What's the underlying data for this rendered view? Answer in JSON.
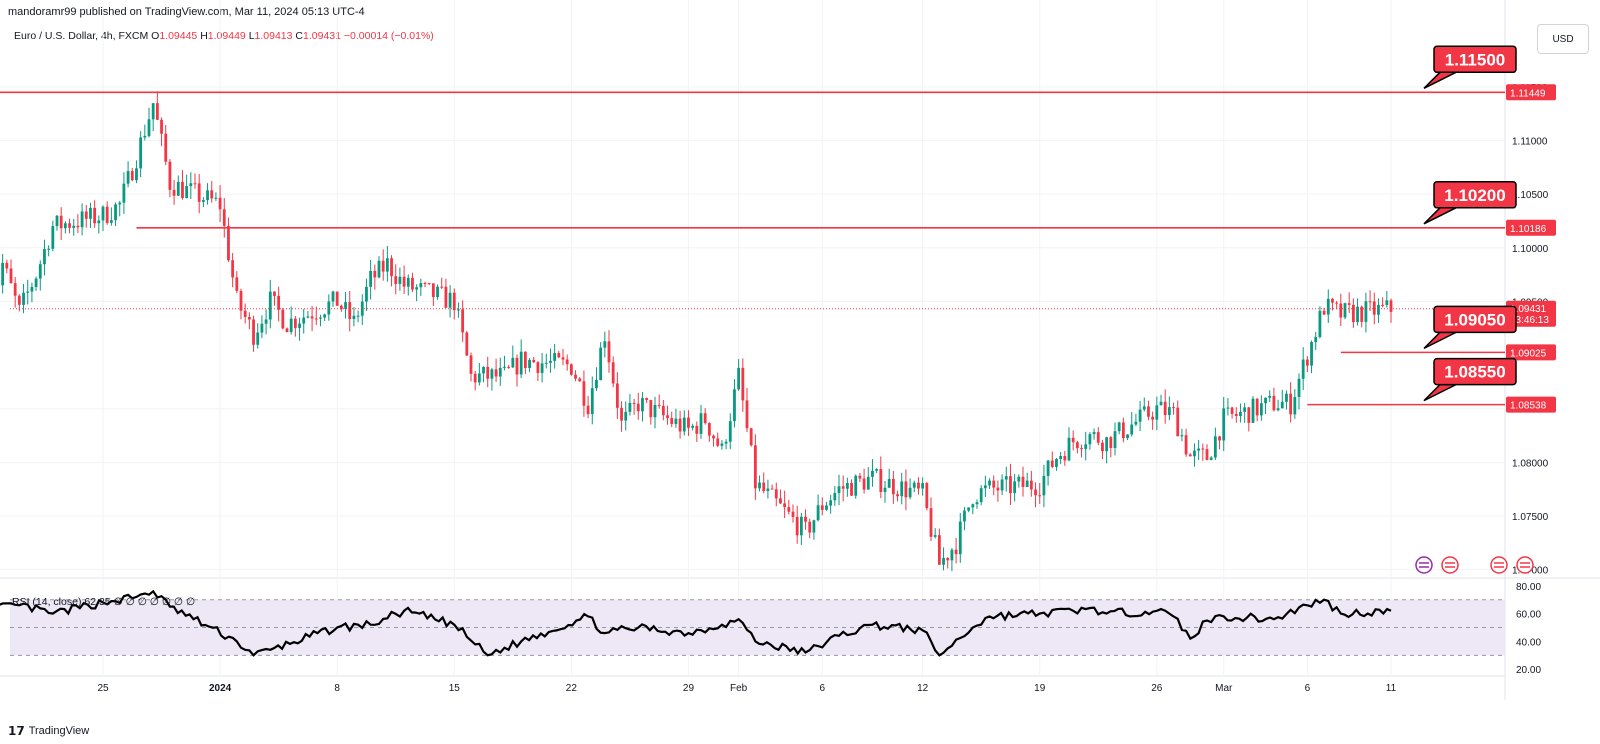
{
  "header": {
    "published_by": "mandoramr99 published on TradingView.com, Mar 11, 2024 05:13 UTC-4"
  },
  "legend": {
    "symbol": "Euro / U.S. Dollar, 4h, FXCM",
    "o_label": "O",
    "o_value": "1.09445",
    "h_label": "H",
    "h_value": "1.09449",
    "l_label": "L",
    "l_value": "1.09413",
    "c_label": "C",
    "c_value": "1.09431",
    "change": "−0.00014 (−0.01%)"
  },
  "currency_button": "USD",
  "rsi_legend": {
    "label": "RSI (14, close)",
    "value": "62.35",
    "extra": "∅ ∅ ∅ ∅ ∅ ∅ ∅"
  },
  "footer": {
    "logo_text": "TradingView"
  },
  "colors": {
    "up": "#089981",
    "down": "#f23645",
    "level_line": "#f23645",
    "callout_bg": "#f23645",
    "rsi_band": "#ede7f6",
    "rsi_line": "#000000"
  },
  "chart_data": [
    {
      "type": "candlestick",
      "xlabel": "",
      "ylabel": "",
      "price_axis_labels": [
        "1.11500",
        "1.11000",
        "1.10500",
        "1.10000",
        "1.09500",
        "1.08500",
        "1.08000",
        "1.07500",
        "1.07000"
      ],
      "price_axis_values": [
        1.115,
        1.11,
        1.105,
        1.1,
        1.095,
        1.085,
        1.08,
        1.075,
        1.07
      ],
      "time_axis_labels": [
        "25",
        "2024",
        "8",
        "15",
        "22",
        "29",
        "Feb",
        "6",
        "12",
        "19",
        "26",
        "Mar",
        "6",
        "11"
      ],
      "ylim": [
        1.0695,
        1.1175
      ],
      "current_price": {
        "value": 1.09431,
        "label": "1.09431",
        "countdown": "03:46:13"
      },
      "levels": [
        {
          "callout": "1.11500",
          "axis_label": "1.11449",
          "value": 1.11449,
          "x_start": "2023-12-18"
        },
        {
          "callout": "1.10200",
          "axis_label": "1.10186",
          "value": 1.10186,
          "x_start": "2023-12-27"
        },
        {
          "callout": "1.09050",
          "axis_label": "1.09025",
          "value": 1.09025,
          "x_start": "2024-03-08"
        },
        {
          "callout": "1.08550",
          "axis_label": "1.08538",
          "value": 1.08538,
          "x_start": "2024-03-06"
        }
      ],
      "price_path": [
        [
          "2023-12-18",
          1.092
        ],
        [
          "2023-12-19",
          1.0985
        ],
        [
          "2023-12-20",
          1.094
        ],
        [
          "2023-12-21",
          1.0975
        ],
        [
          "2023-12-22",
          1.102
        ],
        [
          "2023-12-25",
          1.103
        ],
        [
          "2023-12-26",
          1.104
        ],
        [
          "2023-12-27",
          1.1085
        ],
        [
          "2023-12-28",
          1.1135
        ],
        [
          "2023-12-29",
          1.106
        ],
        [
          "2024-01-01",
          1.104
        ],
        [
          "2024-01-02",
          1.095
        ],
        [
          "2024-01-03",
          1.092
        ],
        [
          "2024-01-04",
          1.095
        ],
        [
          "2024-01-05",
          1.093
        ],
        [
          "2024-01-08",
          1.095
        ],
        [
          "2024-01-09",
          1.093
        ],
        [
          "2024-01-10",
          1.097
        ],
        [
          "2024-01-11",
          1.0985
        ],
        [
          "2024-01-12",
          1.0965
        ],
        [
          "2024-01-15",
          1.095
        ],
        [
          "2024-01-16",
          1.088
        ],
        [
          "2024-01-17",
          1.088
        ],
        [
          "2024-01-18",
          1.088
        ],
        [
          "2024-01-19",
          1.0895
        ],
        [
          "2024-01-22",
          1.089
        ],
        [
          "2024-01-23",
          1.0855
        ],
        [
          "2024-01-24",
          1.092
        ],
        [
          "2024-01-25",
          1.0835
        ],
        [
          "2024-01-26",
          1.0855
        ],
        [
          "2024-01-29",
          1.083
        ],
        [
          "2024-01-30",
          1.084
        ],
        [
          "2024-01-31",
          1.081
        ],
        [
          "2024-02-01",
          1.088
        ],
        [
          "2024-02-02",
          1.078
        ],
        [
          "2024-02-05",
          1.0735
        ],
        [
          "2024-02-06",
          1.076
        ],
        [
          "2024-02-07",
          1.0775
        ],
        [
          "2024-02-08",
          1.078
        ],
        [
          "2024-02-09",
          1.0785
        ],
        [
          "2024-02-12",
          1.077
        ],
        [
          "2024-02-13",
          1.0705
        ],
        [
          "2024-02-14",
          1.0725
        ],
        [
          "2024-02-15",
          1.077
        ],
        [
          "2024-02-16",
          1.0775
        ],
        [
          "2024-02-19",
          1.078
        ],
        [
          "2024-02-20",
          1.0805
        ],
        [
          "2024-02-21",
          1.082
        ],
        [
          "2024-02-22",
          1.0825
        ],
        [
          "2024-02-23",
          1.082
        ],
        [
          "2024-02-26",
          1.085
        ],
        [
          "2024-02-27",
          1.0845
        ],
        [
          "2024-02-28",
          1.0805
        ],
        [
          "2024-02-29",
          1.0805
        ],
        [
          "2024-03-01",
          1.084
        ],
        [
          "2024-03-04",
          1.0855
        ],
        [
          "2024-03-05",
          1.0855
        ],
        [
          "2024-03-06",
          1.09
        ],
        [
          "2024-03-07",
          1.0945
        ],
        [
          "2024-03-08",
          1.0938
        ],
        [
          "2024-03-11",
          1.0943
        ]
      ]
    },
    {
      "type": "line",
      "title": "RSI (14, close)",
      "y_axis_labels": [
        "80.00",
        "60.00",
        "40.00",
        "20.00"
      ],
      "y_axis_values": [
        80,
        60,
        40,
        20
      ],
      "ylim": [
        18,
        82
      ],
      "band": [
        30,
        70
      ],
      "midline": 50,
      "series": [
        {
          "x": [
            "2023-12-18",
            "2023-12-20",
            "2023-12-22",
            "2023-12-25",
            "2023-12-27",
            "2023-12-28",
            "2023-12-29",
            "2024-01-02",
            "2024-01-03",
            "2024-01-04",
            "2024-01-08",
            "2024-01-10",
            "2024-01-12",
            "2024-01-15",
            "2024-01-17",
            "2024-01-19",
            "2024-01-23",
            "2024-01-24",
            "2024-01-26",
            "2024-01-29",
            "2024-01-31",
            "2024-02-01",
            "2024-02-02",
            "2024-02-05",
            "2024-02-07",
            "2024-02-09",
            "2024-02-12",
            "2024-02-13",
            "2024-02-15",
            "2024-02-16",
            "2024-02-19",
            "2024-02-21",
            "2024-02-22",
            "2024-02-23",
            "2024-02-26",
            "2024-02-27",
            "2024-02-28",
            "2024-02-29",
            "2024-03-01",
            "2024-03-04",
            "2024-03-06",
            "2024-03-07",
            "2024-03-08",
            "2024-03-11"
          ],
          "values": [
            63,
            66,
            60,
            68,
            72,
            76,
            65,
            40,
            30,
            34,
            50,
            52,
            62,
            52,
            30,
            40,
            58,
            46,
            50,
            46,
            52,
            56,
            40,
            32,
            44,
            52,
            48,
            30,
            50,
            58,
            60,
            62,
            64,
            60,
            62,
            58,
            42,
            55,
            58,
            56,
            66,
            70,
            60,
            62
          ]
        }
      ]
    }
  ]
}
